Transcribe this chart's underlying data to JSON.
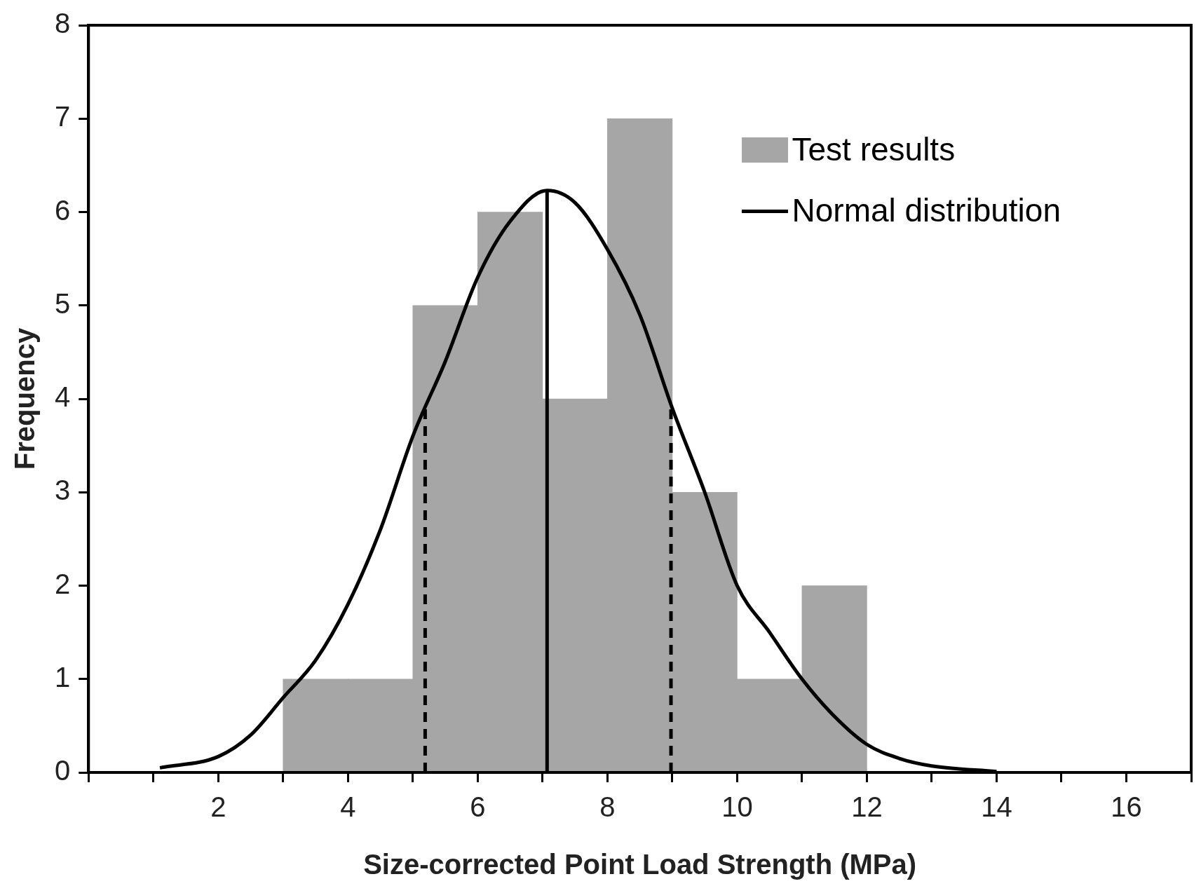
{
  "chart_data": {
    "type": "histogram",
    "xlabel": "Size-corrected Point Load Strength (MPa)",
    "ylabel": "Frequency",
    "bins": [
      3,
      4,
      5,
      6,
      7,
      8,
      9,
      10,
      11,
      12
    ],
    "series": [
      {
        "name": "Test results",
        "color": "#a6a6a6",
        "values": [
          1,
          1,
          5,
          6,
          4,
          7,
          3,
          1,
          2
        ]
      },
      {
        "name": "Normal distribution",
        "type": "line",
        "color": "#000000",
        "x": [
          1.1,
          2,
          2.5,
          3,
          3.5,
          4,
          4.5,
          5,
          5.5,
          6,
          6.5,
          7.07,
          7.5,
          8,
          8.5,
          9,
          9.5,
          10,
          10.5,
          11,
          11.5,
          12,
          12.5,
          13,
          14
        ],
        "values": [
          0.05,
          0.17,
          0.4,
          0.8,
          1.2,
          1.8,
          2.6,
          3.6,
          4.4,
          5.3,
          5.9,
          6.23,
          6.1,
          5.6,
          4.9,
          3.9,
          3.0,
          2.0,
          1.5,
          1.0,
          0.6,
          0.3,
          0.15,
          0.07,
          0.01
        ]
      }
    ],
    "ref_lines": [
      {
        "axis": "x",
        "value": 7.07,
        "color": "#000000",
        "line_style": "solid"
      },
      {
        "axis": "x",
        "value": 5.19,
        "color": "#000000",
        "line_style": "dashed"
      },
      {
        "axis": "x",
        "value": 8.98,
        "color": "#000000",
        "line_style": "dashed"
      }
    ],
    "xlim": [
      0,
      17
    ],
    "ylim": [
      0,
      8
    ],
    "xticks": [
      {
        "value": 0,
        "label": null
      },
      {
        "value": 1,
        "label": null
      },
      2,
      {
        "value": 3,
        "label": null
      },
      4,
      {
        "value": 5,
        "label": null
      },
      6,
      {
        "value": 7,
        "label": null
      },
      8,
      {
        "value": 9,
        "label": null
      },
      10,
      {
        "value": 11,
        "label": null
      },
      12,
      {
        "value": 13,
        "label": null
      },
      14,
      {
        "value": 15,
        "label": null
      },
      16,
      {
        "value": 17,
        "label": null
      }
    ],
    "yticks": [
      0,
      1,
      2,
      3,
      4,
      5,
      6,
      7,
      8
    ],
    "grid": false,
    "legend": "top right",
    "marker": "none"
  }
}
